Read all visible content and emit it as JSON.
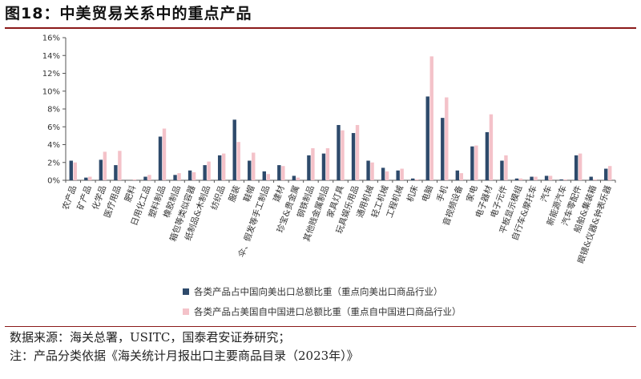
{
  "header": {
    "title": "图18：中美贸易关系中的重点产品"
  },
  "chart_data": {
    "type": "bar",
    "title": "",
    "xlabel": "",
    "ylabel": "",
    "ylim": [
      0,
      16
    ],
    "yticks": [
      0,
      2,
      4,
      6,
      8,
      10,
      12,
      14,
      16
    ],
    "ytick_labels": [
      "0%",
      "2%",
      "4%",
      "6%",
      "8%",
      "10%",
      "12%",
      "14%",
      "16%"
    ],
    "grid": false,
    "legend_position": "bottom-center",
    "categories": [
      "农产品",
      "矿产品",
      "化学品",
      "医疗用品",
      "肥料",
      "日用化工品",
      "塑料制品",
      "橡胶制品",
      "箱包等类似容器",
      "纸制品&木制品",
      "纺织品",
      "服装",
      "鞋帽",
      "伞、假发等手工制品",
      "建材",
      "珍宝&贵金属",
      "钢铁制品",
      "其他贱金属制品",
      "家具灯具",
      "玩具娱乐用品",
      "通用机械",
      "轻工机械",
      "工程机械",
      "机床",
      "电脑",
      "手机",
      "音视频设备",
      "家电",
      "电子器材",
      "电子元件",
      "平板显示模组",
      "自行车&摩托车",
      "汽车",
      "新能源汽车",
      "汽车零配件",
      "船舶&集装箱",
      "眼镜&仪器&钟表乐器"
    ],
    "series": [
      {
        "name": "各类产品占中国向美出口总额比重（重点向美出口商品行业）",
        "color": "#2e4a6b",
        "values": [
          2.2,
          0.3,
          2.3,
          1.7,
          0.0,
          0.4,
          4.9,
          0.6,
          1.1,
          1.7,
          2.8,
          6.8,
          2.2,
          1.0,
          1.7,
          0.5,
          2.8,
          3.0,
          6.2,
          5.3,
          2.2,
          1.4,
          1.1,
          0.2,
          9.4,
          7.0,
          1.1,
          3.8,
          5.4,
          2.2,
          0.2,
          0.4,
          0.5,
          0.1,
          2.8,
          0.4,
          1.3
        ]
      },
      {
        "name": "各类产品占美国自中国进口总额比重（重点自中国进口商品行业）",
        "color": "#f4c2c9",
        "values": [
          2.0,
          0.4,
          3.2,
          3.3,
          0.1,
          0.6,
          5.8,
          0.8,
          0.9,
          2.1,
          3.0,
          4.3,
          3.1,
          0.7,
          1.6,
          0.3,
          3.6,
          3.6,
          5.6,
          6.2,
          2.0,
          1.0,
          1.3,
          0.1,
          13.9,
          9.3,
          0.8,
          3.9,
          7.4,
          2.8,
          0.2,
          0.4,
          0.5,
          0.1,
          3.0,
          0.1,
          1.6
        ]
      }
    ]
  },
  "footer": {
    "source": "数据来源：海关总署，USITC，国泰君安证券研究；",
    "note": "注：产品分类依据《海关统计月报出口主要商品目录（2023年）》"
  }
}
